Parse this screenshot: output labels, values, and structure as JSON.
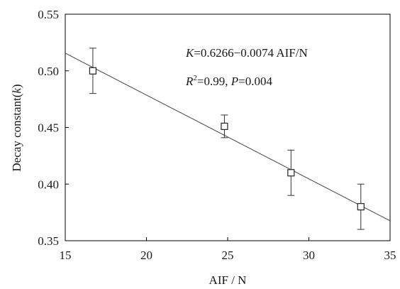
{
  "chart_data": {
    "type": "scatter",
    "title": "",
    "xlabel": "AIF / N",
    "ylabel_parts": [
      "Decay constant(",
      "k",
      ")"
    ],
    "xlim": [
      15,
      35
    ],
    "ylim": [
      0.35,
      0.55
    ],
    "xticks": [
      15,
      20,
      25,
      30,
      35
    ],
    "yticks": [
      0.35,
      0.4,
      0.45,
      0.5,
      0.55
    ],
    "xtick_labels": [
      "15",
      "20",
      "25",
      "30",
      "35"
    ],
    "ytick_labels": [
      "0.35",
      "0.40",
      "0.45",
      "0.50",
      "0.55"
    ],
    "grid": false,
    "points": [
      {
        "x": 16.7,
        "y": 0.5,
        "err": 0.02
      },
      {
        "x": 24.8,
        "y": 0.451,
        "err": 0.01
      },
      {
        "x": 28.9,
        "y": 0.41,
        "err": 0.02
      },
      {
        "x": 33.2,
        "y": 0.38,
        "err": 0.02
      }
    ],
    "fit": {
      "intercept": 0.6266,
      "slope": -0.0074
    },
    "annotations": {
      "equation_var": "K",
      "equation_rest": "=0.6266−0.0074 AIF/N",
      "r2_var": "R",
      "r2_sup": "2",
      "r2_rest": "=0.99, ",
      "p_var": "P",
      "p_rest": "=0.004"
    }
  }
}
